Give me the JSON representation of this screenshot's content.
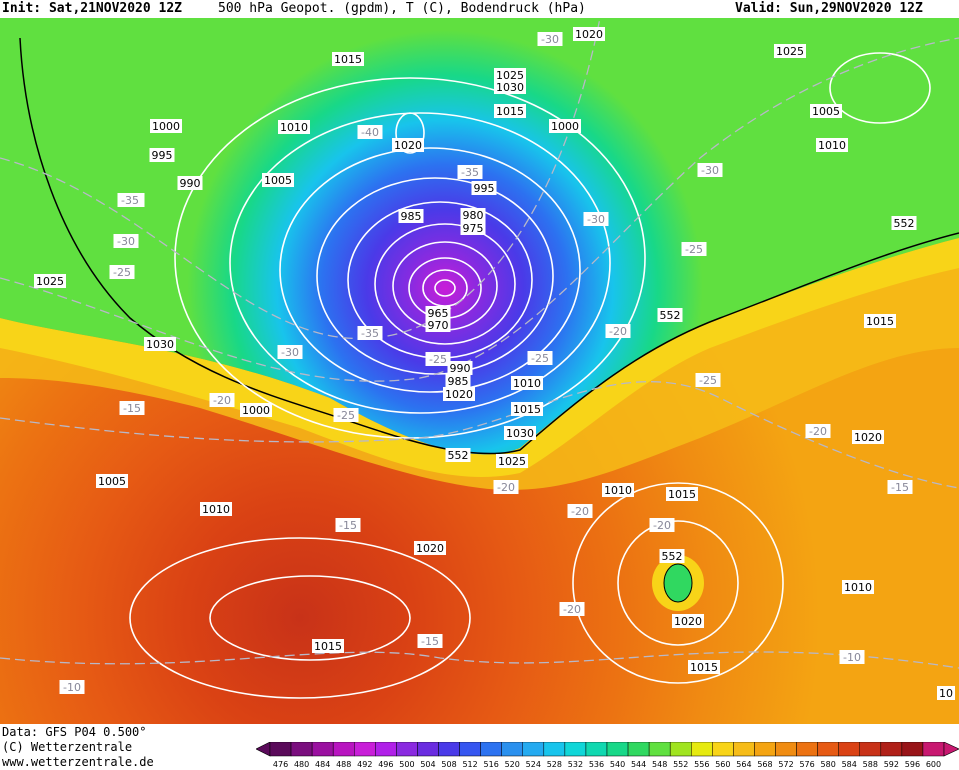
{
  "header": {
    "init_text": "Init: Sat,21NOV2020 12Z",
    "title": "500 hPa Geopot. (gpdm), T (C), Bodendruck (hPa)",
    "valid_text": "Valid: Sun,29NOV2020 12Z"
  },
  "footer": {
    "data_source": "Data: GFS P04 0.500°",
    "copyright": "(C) Wetterzentrale",
    "website": "www.wetterzentrale.de"
  },
  "colorbar": {
    "ticks": [
      "476",
      "480",
      "484",
      "488",
      "492",
      "496",
      "500",
      "504",
      "508",
      "512",
      "516",
      "520",
      "524",
      "528",
      "532",
      "536",
      "540",
      "544",
      "548",
      "552",
      "556",
      "560",
      "564",
      "568",
      "572",
      "576",
      "580",
      "584",
      "588",
      "592",
      "596",
      "600"
    ],
    "colors": [
      "#5a0a5a",
      "#7a0e7e",
      "#9a10a0",
      "#b814c0",
      "#c81ed8",
      "#b020e8",
      "#8a2ae0",
      "#6a2ce0",
      "#4a3ae8",
      "#3656f0",
      "#2c72f0",
      "#2a90ee",
      "#24aaf0",
      "#18c4ec",
      "#10d6d8",
      "#10d8b0",
      "#18d888",
      "#30d860",
      "#60e040",
      "#a0e420",
      "#e6ea10",
      "#f8d418",
      "#f6bc18",
      "#f4a412",
      "#f08c12",
      "#ec7212",
      "#e65a14",
      "#da4214",
      "#c83218",
      "#b02018",
      "#981418",
      "#c81870"
    ]
  },
  "map": {
    "geopotential_boundary_label": "552",
    "isobar_labels": [
      "1015",
      "1010",
      "1005",
      "1000",
      "995",
      "990",
      "985",
      "980",
      "975",
      "970",
      "965",
      "1020",
      "1025",
      "1030",
      "1000",
      "1005",
      "1010",
      "1015",
      "1020",
      "1025",
      "1030",
      "1015",
      "1020",
      "1025",
      "1005",
      "1010",
      "1015",
      "1020",
      "1025",
      "1030",
      "1015",
      "1010",
      "1000",
      "995",
      "990",
      "985",
      "1020",
      "1010",
      "1015",
      "1020",
      "1015",
      "1010",
      "10"
    ],
    "temperature_labels": [
      "-30",
      "-40",
      "-35",
      "-30",
      "-35",
      "-30",
      "-25",
      "-35",
      "-30",
      "-25",
      "-25",
      "-20",
      "-15",
      "-15",
      "-35",
      "-30",
      "-25",
      "-20",
      "-20",
      "-15",
      "-15",
      "-20",
      "-20",
      "-20",
      "-10",
      "-10",
      "-25",
      "-20",
      "-25"
    ],
    "contour_552_labels": [
      "552",
      "552",
      "552",
      "552"
    ]
  }
}
